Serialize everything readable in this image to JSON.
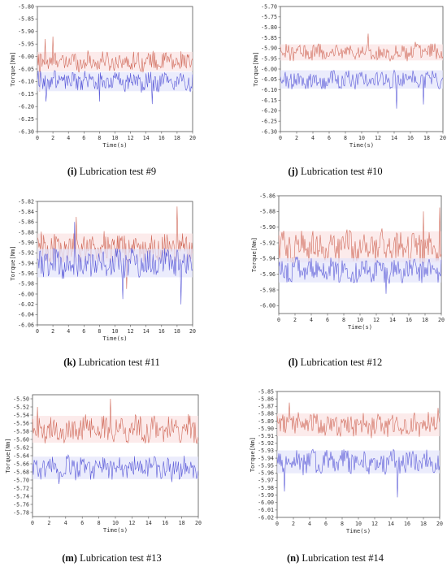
{
  "colors": {
    "red_series": "#d06a5a",
    "blue_series": "#5a5ad8",
    "band_red": "#fbe3e3",
    "band_blue": "#e2e4fb",
    "axis": "#555555"
  },
  "chart_data": [
    {
      "type": "line",
      "caption_letter": "(i)",
      "caption_text": "Lubrication test #9",
      "xlabel": "Time(s)",
      "ylabel": "Torque[Nm]",
      "xlim": [
        0,
        20
      ],
      "ylim": [
        -6.3,
        -5.8
      ],
      "xticks": [
        0,
        2,
        4,
        6,
        8,
        10,
        12,
        14,
        16,
        18,
        20
      ],
      "yticks": [
        "-5.80",
        "-5.85",
        "-5.90",
        "-5.95",
        "-6.00",
        "-6.05",
        "-6.10",
        "-6.15",
        "-6.20",
        "-6.25",
        "-6.30"
      ],
      "series": [
        {
          "color": "red",
          "mean": -6.02,
          "amp": 0.035,
          "spikes": [
            [
              2.0,
              -5.92
            ],
            [
              1.0,
              -5.93
            ],
            [
              0.3,
              -6.14
            ]
          ]
        },
        {
          "color": "blue",
          "mean": -6.1,
          "amp": 0.035,
          "spikes": [
            [
              1.1,
              -6.18
            ],
            [
              8.0,
              -6.18
            ],
            [
              14.8,
              -6.19
            ]
          ]
        }
      ]
    },
    {
      "type": "line",
      "caption_letter": "(j)",
      "caption_text": "Lubrication test #10",
      "xlabel": "Time(s)",
      "ylabel": "Torque[Nm]",
      "xlim": [
        0,
        20
      ],
      "ylim": [
        -6.3,
        -5.7
      ],
      "xticks": [
        0,
        2,
        4,
        6,
        8,
        10,
        12,
        14,
        16,
        18,
        20
      ],
      "yticks": [
        "-5.70",
        "-5.75",
        "-5.80",
        "-5.85",
        "-5.90",
        "-5.95",
        "-6.00",
        "-6.05",
        "-6.10",
        "-6.15",
        "-6.20",
        "-6.25",
        "-6.30"
      ],
      "series": [
        {
          "color": "red",
          "mean": -5.92,
          "amp": 0.035,
          "spikes": [
            [
              10.8,
              -5.83
            ],
            [
              16.6,
              -5.87
            ]
          ]
        },
        {
          "color": "blue",
          "mean": -6.05,
          "amp": 0.04,
          "spikes": [
            [
              14.3,
              -6.19
            ],
            [
              17.6,
              -6.17
            ]
          ]
        }
      ]
    },
    {
      "type": "line",
      "caption_letter": "(k)",
      "caption_text": "Lubrication test #11",
      "xlabel": "Time(s)",
      "ylabel": "Torque[Nm]",
      "xlim": [
        0,
        20
      ],
      "ylim": [
        -6.06,
        -5.82
      ],
      "xticks": [
        0,
        2,
        4,
        6,
        8,
        10,
        12,
        14,
        16,
        18,
        20
      ],
      "yticks": [
        "-5.82",
        "-5.84",
        "-5.86",
        "-5.88",
        "-5.90",
        "-5.92",
        "-5.94",
        "-5.96",
        "-5.98",
        "-6.00",
        "-6.02",
        "-6.04",
        "-6.06"
      ],
      "series": [
        {
          "color": "red",
          "mean": -5.91,
          "amp": 0.025,
          "spikes": [
            [
              18.0,
              -5.83
            ],
            [
              5.0,
              -5.85
            ],
            [
              11.5,
              -5.99
            ]
          ]
        },
        {
          "color": "blue",
          "mean": -5.94,
          "amp": 0.025,
          "spikes": [
            [
              4.8,
              -5.86
            ],
            [
              18.5,
              -6.02
            ],
            [
              11.0,
              -6.01
            ]
          ]
        }
      ]
    },
    {
      "type": "line",
      "caption_letter": "(l)",
      "caption_text": "Lubrication test #12",
      "xlabel": "Time(s)",
      "ylabel": "Torque[Nm]",
      "xlim": [
        0,
        20
      ],
      "ylim": [
        -6.01,
        -5.86
      ],
      "xticks": [
        0,
        2,
        4,
        6,
        8,
        10,
        12,
        14,
        16,
        18,
        20
      ],
      "yticks": [
        "-5.86",
        "-5.88",
        "-5.90",
        "-5.92",
        "-5.94",
        "-5.96",
        "-5.98",
        "-6.00"
      ],
      "series": [
        {
          "color": "red",
          "mean": -5.925,
          "amp": 0.018,
          "spikes": [
            [
              19.8,
              -5.875
            ],
            [
              17.8,
              -5.88
            ]
          ]
        },
        {
          "color": "blue",
          "mean": -5.955,
          "amp": 0.014,
          "spikes": [
            [
              13.2,
              -5.985
            ]
          ]
        }
      ]
    },
    {
      "type": "line",
      "caption_letter": "(m)",
      "caption_text": "Lubrication test #13",
      "xlabel": "Time(s)",
      "ylabel": "Torque[Nm]",
      "xlim": [
        0,
        20
      ],
      "ylim": [
        -5.79,
        -5.49
      ],
      "xticks": [
        0,
        2,
        4,
        6,
        8,
        10,
        12,
        14,
        16,
        18,
        20
      ],
      "yticks": [
        "-5.50",
        "-5.52",
        "-5.54",
        "-5.56",
        "-5.58",
        "-5.60",
        "-5.62",
        "-5.64",
        "-5.66",
        "-5.68",
        "-5.70",
        "-5.72",
        "-5.74",
        "-5.76",
        "-5.78"
      ],
      "series": [
        {
          "color": "red",
          "mean": -5.575,
          "amp": 0.03,
          "spikes": [
            [
              9.4,
              -5.5
            ],
            [
              0.6,
              -5.52
            ]
          ]
        },
        {
          "color": "blue",
          "mean": -5.67,
          "amp": 0.025,
          "spikes": [
            [
              3.2,
              -5.71
            ],
            [
              16.8,
              -5.705
            ]
          ]
        }
      ]
    },
    {
      "type": "line",
      "caption_letter": "(n)",
      "caption_text": "Lubrication test #14",
      "xlabel": "Time(s)",
      "ylabel": "Torque[Nm]",
      "xlim": [
        0,
        20
      ],
      "ylim": [
        -6.02,
        -5.85
      ],
      "xticks": [
        0,
        2,
        4,
        6,
        8,
        10,
        12,
        14,
        16,
        18,
        20
      ],
      "yticks": [
        "-5.85",
        "-5.86",
        "-5.87",
        "-5.88",
        "-5.89",
        "-5.90",
        "-5.91",
        "-5.92",
        "-5.93",
        "-5.94",
        "-5.95",
        "-5.96",
        "-5.97",
        "-5.98",
        "-5.99",
        "-6.00",
        "-6.01",
        "-6.02"
      ],
      "series": [
        {
          "color": "red",
          "mean": -5.895,
          "amp": 0.014,
          "spikes": [
            [
              1.5,
              -5.865
            ],
            [
              19.8,
              -5.872
            ]
          ]
        },
        {
          "color": "blue",
          "mean": -5.945,
          "amp": 0.014,
          "spikes": [
            [
              14.8,
              -5.993
            ],
            [
              0.9,
              -5.985
            ]
          ]
        }
      ]
    }
  ]
}
